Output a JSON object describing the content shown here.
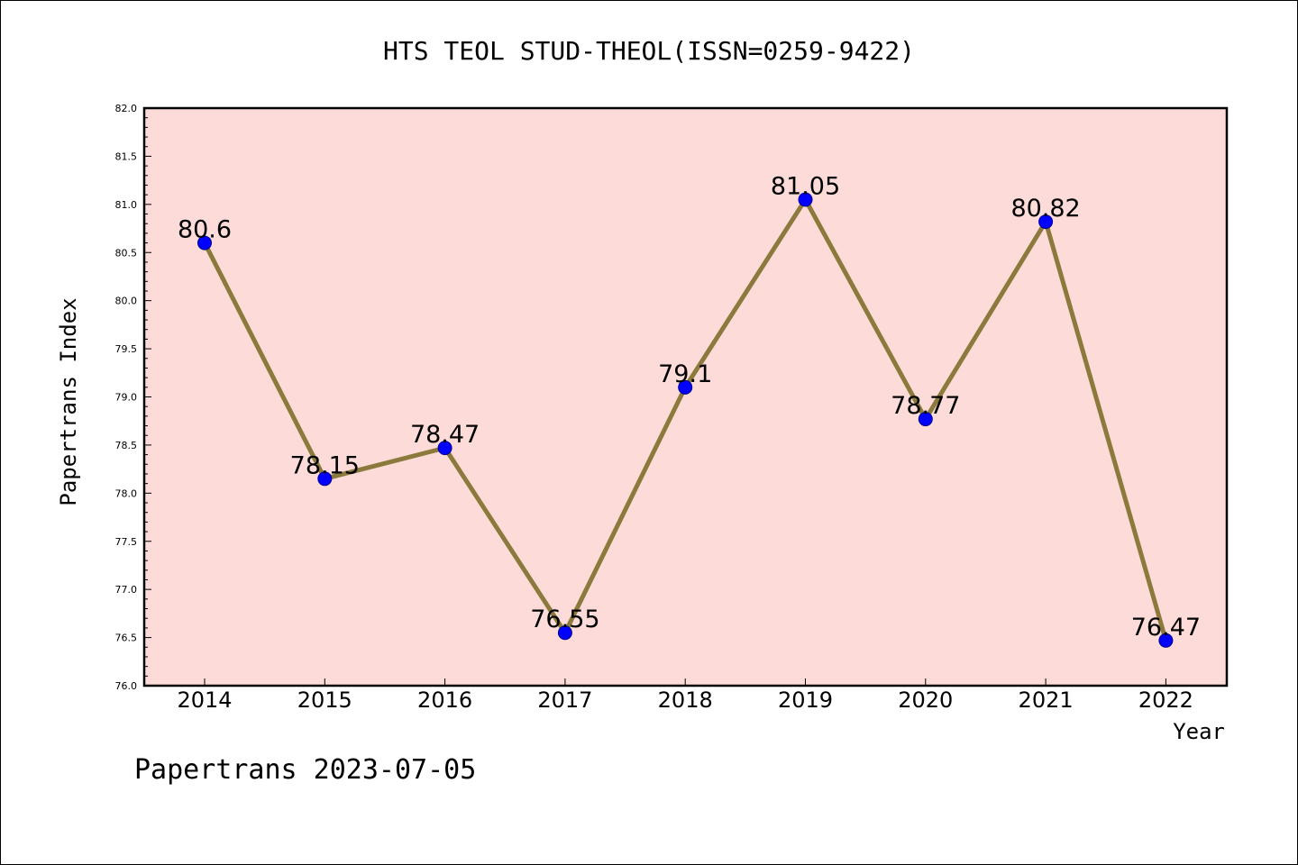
{
  "chart_data": {
    "type": "line",
    "title": "HTS TEOL STUD-THEOL(ISSN=0259-9422)",
    "xlabel": "Year",
    "ylabel": "Papertrans Index",
    "footer": "Papertrans 2023-07-05",
    "categories": [
      "2014",
      "2015",
      "2016",
      "2017",
      "2018",
      "2019",
      "2020",
      "2021",
      "2022"
    ],
    "series": [
      {
        "values": [
          80.6,
          78.15,
          78.47,
          76.55,
          79.1,
          81.05,
          78.77,
          80.82,
          76.47
        ],
        "labels": [
          "80.6",
          "78.15",
          "78.47",
          "76.55",
          "79.1",
          "81.05",
          "78.77",
          "80.82",
          "76.47"
        ]
      }
    ],
    "ylim": [
      76.0,
      82.0
    ],
    "yticks": [
      "76.0",
      "76.5",
      "77.0",
      "77.5",
      "78.0",
      "78.5",
      "79.0",
      "79.5",
      "80.0",
      "80.5",
      "81.0",
      "81.5",
      "82.0"
    ],
    "grid": false,
    "colors": {
      "plot_background": "#fddbd9",
      "line": "#8b7a3c",
      "marker": "#0000ff",
      "marker_edge": "#00008b",
      "axis": "#000000"
    }
  }
}
